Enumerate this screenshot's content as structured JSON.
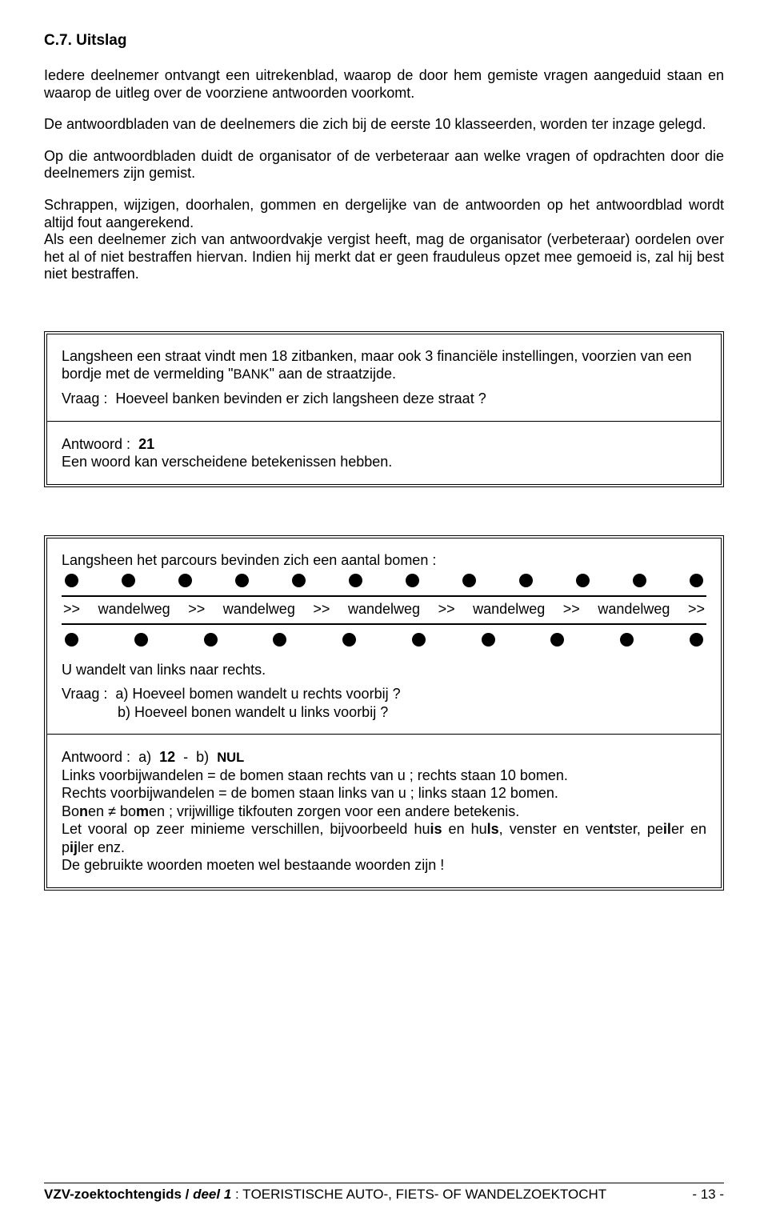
{
  "heading": "C.7. Uitslag",
  "para1": "Iedere deelnemer ontvangt een uitrekenblad, waarop de door hem gemiste vragen aangeduid staan en waarop de uitleg over de voorziene antwoorden voorkomt.",
  "para2": "De antwoordbladen van de deelnemers die zich bij de eerste 10 klasseerden, worden ter inzage gelegd.",
  "para3": "Op die antwoordbladen duidt de organisator of de verbeteraar aan welke vragen of opdrachten door die deelnemers zijn gemist.",
  "para4a": "Schrappen, wijzigen, doorhalen, gommen en dergelijke van de antwoorden op het antwoordblad wordt altijd fout aangerekend.",
  "para4b": "Als een deelnemer zich van antwoordvakje vergist heeft, mag de organisator (verbeteraar) oordelen over het al of niet bestraffen hiervan. Indien hij merkt dat er geen frauduleus opzet mee gemoeid is, zal hij best niet bestraffen.",
  "box1": {
    "intro1": "Langsheen een straat vindt men 18 zitbanken, maar ook 3 financiële instellingen, voorzien van een bordje met de vermelding \"",
    "bank": "BANK",
    "intro1b": "\" aan de straatzijde.",
    "vraag_label": "Vraag :",
    "vraag_text": "Hoeveel banken bevinden er zich langsheen deze straat ?",
    "antwoord_label": "Antwoord :",
    "antwoord_value": "21",
    "antwoord_explain": "Een woord kan verscheidene betekenissen hebben."
  },
  "box2": {
    "intro": "Langsheen het parcours bevinden zich een aantal bomen :",
    "top_dot_count": 12,
    "bottom_dot_count": 10,
    "wandel_line": ">>  wandelweg  >>  wandelweg  >>  wandelweg  >>  wandelweg  >>  wandelweg  >>",
    "walk_dir": "U wandelt van links naar rechts.",
    "vraag_label": "Vraag :",
    "q_a": "a)  Hoeveel bomen wandelt u rechts voorbij ?",
    "q_b": "b)  Hoeveel bonen wandelt u links voorbij ?",
    "ans_label": "Antwoord :",
    "ans_a_label": "a)",
    "ans_a_val": "12",
    "ans_sep": "-",
    "ans_b_label": "b)",
    "ans_b_val": "NUL",
    "expl1": "Links voorbijwandelen = de bomen staan rechts van u ;  rechts staan 10 bomen.",
    "expl2": "Rechts voorbijwandelen = de bomen staan links van u ;  links staan 12 bomen.",
    "expl3_pre": "Bo",
    "expl3_n": "n",
    "expl3_mid": "en ",
    "expl3_neq": "≠",
    "expl3_bo": " bo",
    "expl3_m": "m",
    "expl3_post": "en ;  vrijwillige tikfouten zorgen voor een andere betekenis.",
    "expl4_a": "Let vooral op zeer minieme verschillen, bijvoorbeeld hu",
    "expl4_is": "is",
    "expl4_b": " en hu",
    "expl4_ls": "ls",
    "expl4_c": ", venster en ven",
    "expl4_t": "t",
    "expl4_d": "ster, pe",
    "expl4_il": "il",
    "expl4_e": "er en p",
    "expl4_ij": "ij",
    "expl4_f": "ler enz.",
    "expl5": "De gebruikte woorden moeten wel bestaande woorden zijn !"
  },
  "footer": {
    "bold": "VZV-zoektochtengids / ",
    "deel_pre": "deel 1",
    "deel_post": " : ",
    "caps_pre": "T",
    "caps": "OERISTISCHE AUTO",
    "mid": "-, ",
    "caps2_pre": "FIETS",
    "mid2": "- ",
    "caps3": "OF WANDELZOEKTOCHT",
    "page": "- 13 -"
  }
}
